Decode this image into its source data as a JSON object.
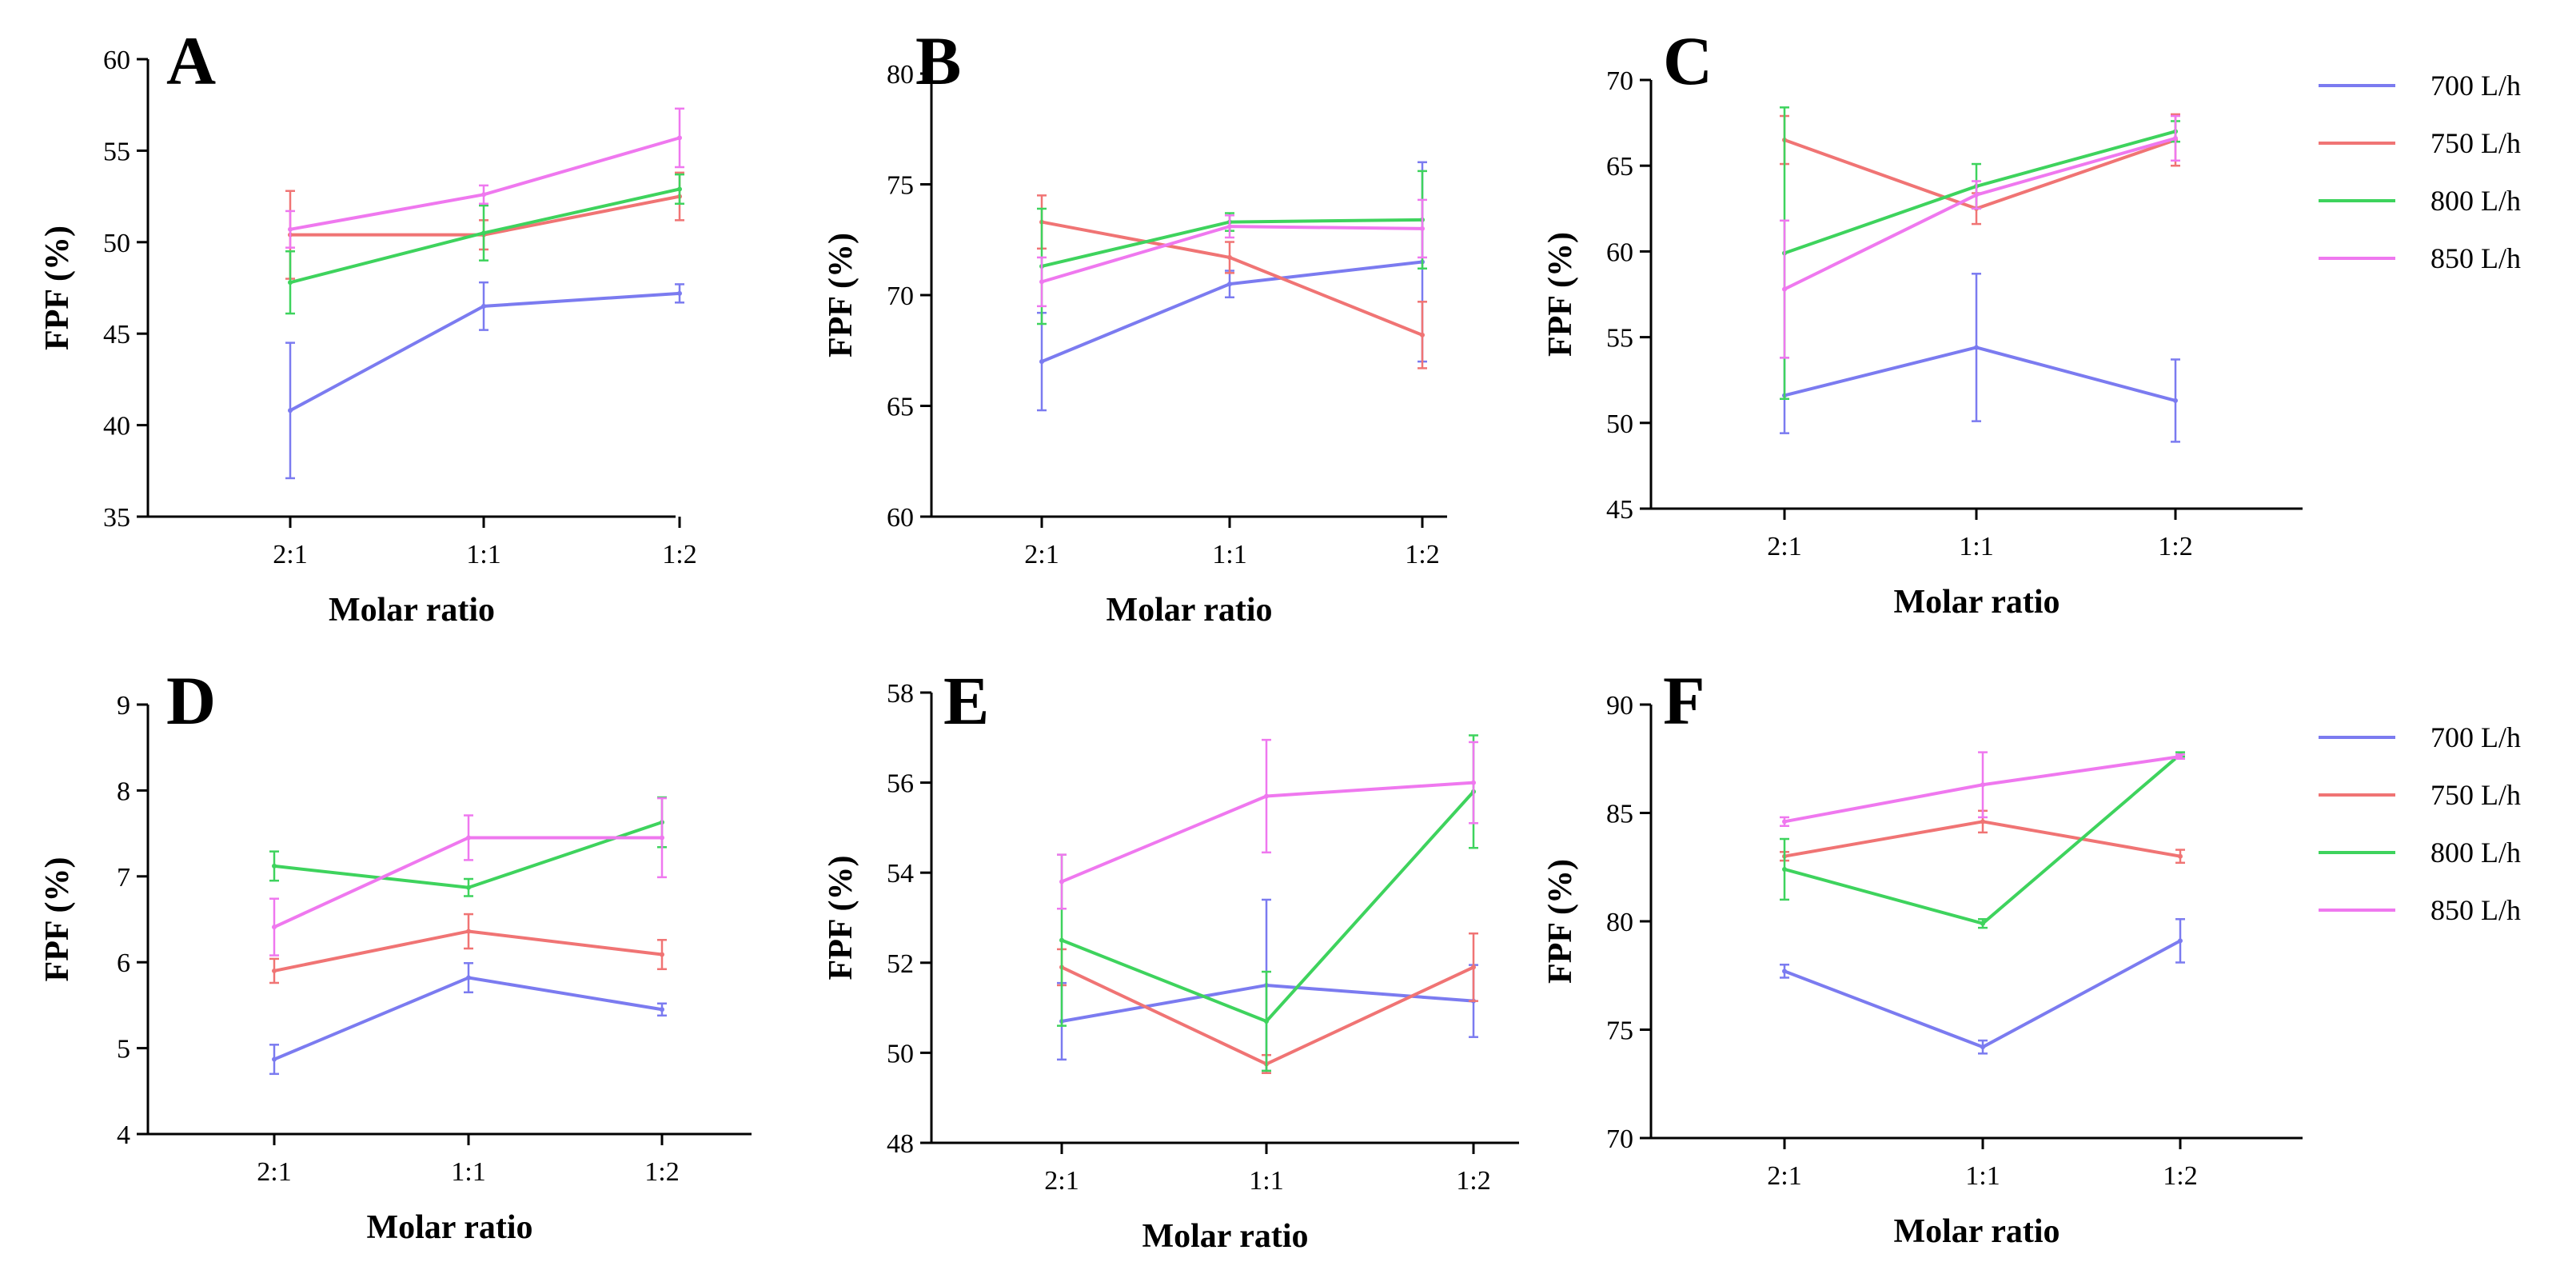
{
  "series_colors": {
    "700 L/h": "#7b7bf0",
    "750 L/h": "#f07474",
    "800 L/h": "#3ed35d",
    "850 L/h": "#ef78ef"
  },
  "legend": {
    "top": [
      "700 L/h",
      "750 L/h",
      "800 L/h",
      "850 L/h"
    ],
    "bottom": [
      "700 L/h",
      "750 L/h",
      "800 L/h",
      "850 L/h"
    ]
  },
  "chart_data": [
    {
      "type": "line",
      "label": "A",
      "xlabel": "Molar ratio",
      "ylabel": "FPF (%)",
      "categories": [
        "2:1",
        "1:1",
        "1:2"
      ],
      "ylim": [
        35,
        60
      ],
      "yticks": [
        "35",
        "40",
        "45",
        "50",
        "55",
        "60"
      ],
      "series": [
        {
          "name": "700 L/h",
          "values": [
            40.8,
            46.5,
            47.2
          ],
          "errors": [
            3.7,
            1.3,
            0.5
          ]
        },
        {
          "name": "750 L/h",
          "values": [
            50.4,
            50.4,
            52.5
          ],
          "errors": [
            2.4,
            0.8,
            1.3
          ]
        },
        {
          "name": "800 L/h",
          "values": [
            47.8,
            50.5,
            52.9
          ],
          "errors": [
            1.7,
            1.5,
            0.8
          ]
        },
        {
          "name": "850 L/h",
          "values": [
            50.7,
            52.6,
            55.7
          ],
          "errors": [
            1.0,
            0.5,
            1.6
          ]
        }
      ]
    },
    {
      "type": "line",
      "label": "B",
      "xlabel": "Molar ratio",
      "ylabel": "FPF (%)",
      "categories": [
        "2:1",
        "1:1",
        "1:2"
      ],
      "ylim": [
        60,
        80
      ],
      "yticks": [
        "60",
        "65",
        "70",
        "75",
        "80"
      ],
      "series": [
        {
          "name": "700 L/h",
          "values": [
            67.0,
            70.5,
            71.5
          ],
          "errors": [
            2.2,
            0.6,
            4.5
          ]
        },
        {
          "name": "750 L/h",
          "values": [
            73.3,
            71.7,
            68.2
          ],
          "errors": [
            1.2,
            0.7,
            1.5
          ]
        },
        {
          "name": "800 L/h",
          "values": [
            71.3,
            73.3,
            73.4
          ],
          "errors": [
            2.6,
            0.4,
            2.2
          ]
        },
        {
          "name": "850 L/h",
          "values": [
            70.6,
            73.1,
            73.0
          ],
          "errors": [
            1.1,
            0.5,
            1.3
          ]
        }
      ]
    },
    {
      "type": "line",
      "label": "C",
      "xlabel": "Molar ratio",
      "ylabel": "FPF (%)",
      "categories": [
        "2:1",
        "1:1",
        "1:2"
      ],
      "ylim": [
        45,
        70
      ],
      "yticks": [
        "45",
        "50",
        "55",
        "60",
        "65",
        "70"
      ],
      "series": [
        {
          "name": "700 L/h",
          "values": [
            51.6,
            54.4,
            51.3
          ],
          "errors": [
            2.2,
            4.3,
            2.4
          ]
        },
        {
          "name": "750 L/h",
          "values": [
            66.5,
            62.5,
            66.5
          ],
          "errors": [
            1.4,
            0.9,
            1.5
          ]
        },
        {
          "name": "800 L/h",
          "values": [
            59.9,
            63.8,
            67.0
          ],
          "errors": [
            8.5,
            1.3,
            0.6
          ]
        },
        {
          "name": "850 L/h",
          "values": [
            57.8,
            63.3,
            66.6
          ],
          "errors": [
            4.0,
            0.8,
            1.3
          ]
        }
      ]
    },
    {
      "type": "line",
      "label": "D",
      "xlabel": "Molar ratio",
      "ylabel": "FPF (%)",
      "categories": [
        "2:1",
        "1:1",
        "1:2"
      ],
      "ylim": [
        4,
        9
      ],
      "yticks": [
        "4",
        "5",
        "6",
        "7",
        "8",
        "9"
      ],
      "series": [
        {
          "name": "700 L/h",
          "values": [
            4.87,
            5.82,
            5.45
          ],
          "errors": [
            0.17,
            0.17,
            0.07
          ]
        },
        {
          "name": "750 L/h",
          "values": [
            5.9,
            6.36,
            6.09
          ],
          "errors": [
            0.14,
            0.2,
            0.17
          ]
        },
        {
          "name": "800 L/h",
          "values": [
            7.12,
            6.87,
            7.63
          ],
          "errors": [
            0.17,
            0.1,
            0.29
          ]
        },
        {
          "name": "850 L/h",
          "values": [
            6.41,
            7.45,
            7.45
          ],
          "errors": [
            0.33,
            0.26,
            0.46
          ]
        }
      ]
    },
    {
      "type": "line",
      "label": "E",
      "xlabel": "Molar ratio",
      "ylabel": "FPF (%)",
      "categories": [
        "2:1",
        "1:1",
        "1:2"
      ],
      "ylim": [
        48,
        58
      ],
      "yticks": [
        "48",
        "50",
        "52",
        "54",
        "56",
        "58"
      ],
      "series": [
        {
          "name": "700 L/h",
          "values": [
            50.7,
            51.5,
            51.15
          ],
          "errors": [
            0.85,
            1.9,
            0.8
          ]
        },
        {
          "name": "750 L/h",
          "values": [
            51.9,
            49.75,
            51.9
          ],
          "errors": [
            0.4,
            0.2,
            0.75
          ]
        },
        {
          "name": "800 L/h",
          "values": [
            52.5,
            50.7,
            55.8
          ],
          "errors": [
            1.9,
            1.1,
            1.25
          ]
        },
        {
          "name": "850 L/h",
          "values": [
            53.8,
            55.7,
            56.0
          ],
          "errors": [
            0.6,
            1.25,
            0.9
          ]
        }
      ]
    },
    {
      "type": "line",
      "label": "F",
      "xlabel": "Molar ratio",
      "ylabel": "FPF (%)",
      "categories": [
        "2:1",
        "1:1",
        "1:2"
      ],
      "ylim": [
        70,
        90
      ],
      "yticks": [
        "70",
        "75",
        "80",
        "85",
        "90"
      ],
      "series": [
        {
          "name": "700 L/h",
          "values": [
            77.7,
            74.2,
            79.1
          ],
          "errors": [
            0.3,
            0.3,
            1.0
          ]
        },
        {
          "name": "750 L/h",
          "values": [
            83.0,
            84.6,
            83.0
          ],
          "errors": [
            0.2,
            0.5,
            0.3
          ]
        },
        {
          "name": "800 L/h",
          "values": [
            82.4,
            79.9,
            87.7
          ],
          "errors": [
            1.4,
            0.2,
            0.1
          ]
        },
        {
          "name": "850 L/h",
          "values": [
            84.6,
            86.3,
            87.6
          ],
          "errors": [
            0.2,
            1.5,
            0.1
          ]
        }
      ]
    }
  ]
}
